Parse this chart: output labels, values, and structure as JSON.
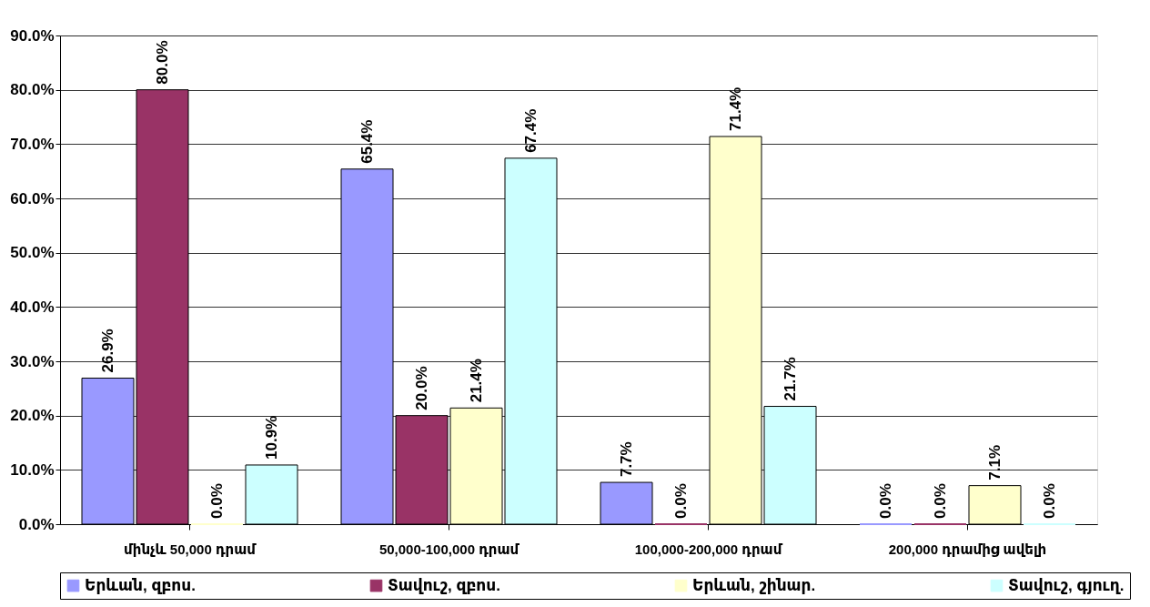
{
  "chart_data": {
    "type": "bar",
    "categories": [
      "մինչև 50,000 դրամ",
      "50,000-100,000 դրամ",
      "100,000-200,000 դրամ",
      "200,000 դրամից ավելի"
    ],
    "series": [
      {
        "name": "Երևան, զբոս.",
        "color": "#9999ff",
        "values": [
          26.9,
          65.4,
          7.7,
          0.0
        ],
        "value_labels": [
          "26.9%",
          "65.4%",
          "7.7%",
          "0.0%"
        ]
      },
      {
        "name": "Տավուշ, զբոս.",
        "color": "#993366",
        "values": [
          80.0,
          20.0,
          0.0,
          0.0
        ],
        "value_labels": [
          "80.0%",
          "20.0%",
          "0.0%",
          "0.0%"
        ]
      },
      {
        "name": "Երևան, շինար.",
        "color": "#ffffcc",
        "values": [
          0.0,
          21.4,
          71.4,
          7.1
        ],
        "value_labels": [
          "0.0%",
          "21.4%",
          "71.4%",
          "7.1%"
        ]
      },
      {
        "name": "Տավուշ, գյուղ.",
        "color": "#ccffff",
        "values": [
          10.9,
          67.4,
          21.7,
          0.0
        ],
        "value_labels": [
          "10.9%",
          "67.4%",
          "21.7%",
          "0.0%"
        ]
      }
    ],
    "ylim": [
      0,
      90
    ],
    "yticks": [
      {
        "value": 0,
        "label": "0.0%"
      },
      {
        "value": 10,
        "label": "10.0%"
      },
      {
        "value": 20,
        "label": "20.0%"
      },
      {
        "value": 30,
        "label": "30.0%"
      },
      {
        "value": 40,
        "label": "40.0%"
      },
      {
        "value": 50,
        "label": "50.0%"
      },
      {
        "value": 60,
        "label": "60.0%"
      },
      {
        "value": 70,
        "label": "70.0%"
      },
      {
        "value": 80,
        "label": "80.0%"
      },
      {
        "value": 90,
        "label": "90.0%"
      }
    ],
    "grid": "y",
    "legend": "bottom"
  }
}
